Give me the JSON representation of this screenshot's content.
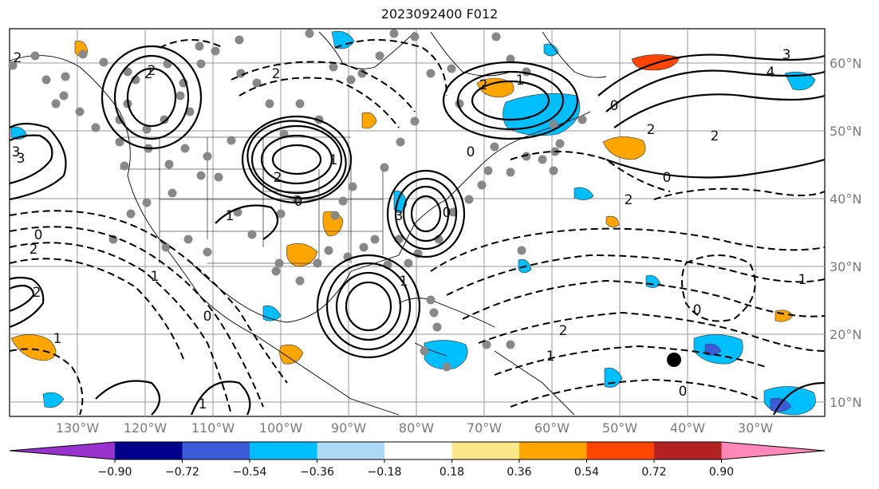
{
  "title": "2023092400 F012",
  "map": {
    "lat_labels": [
      "60°N",
      "50°N",
      "40°N",
      "30°N",
      "20°N",
      "10°N"
    ],
    "lon_labels": [
      "130°W",
      "120°W",
      "110°W",
      "100°W",
      "90°W",
      "80°W",
      "70°W",
      "60°W",
      "50°W",
      "40°W",
      "30°W"
    ],
    "contour_labels": [
      "2",
      "3",
      "2",
      "2",
      "0",
      "1",
      "1",
      "2",
      "3",
      "2",
      "1",
      "0",
      "2",
      "4",
      "3",
      "1",
      "2",
      "0",
      "0",
      "2",
      "2",
      "1",
      "1",
      "0",
      "2",
      "0",
      "0",
      "2",
      "1",
      "0",
      "1",
      "0",
      "3",
      "2",
      "1"
    ]
  },
  "colorbar": {
    "ticks": [
      "−0.90",
      "−0.72",
      "−0.54",
      "−0.36",
      "−0.18",
      "0.18",
      "0.36",
      "0.54",
      "0.72",
      "0.90"
    ],
    "colors": [
      "#9932cc",
      "#00008b",
      "#3b5bd9",
      "#00bfff",
      "#add8f6",
      "#ffffff",
      "#fce68a",
      "#ffa500",
      "#ff4500",
      "#b22222",
      "#ff88b8"
    ]
  }
}
